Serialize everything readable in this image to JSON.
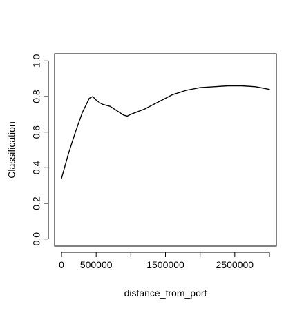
{
  "chart_data": {
    "type": "line",
    "title": "",
    "xlabel": "distance_from_port",
    "ylabel": "Classification",
    "xlim": [
      -100000,
      3100000
    ],
    "ylim": [
      -0.04,
      1.04
    ],
    "x_ticks": [
      0,
      500000,
      1000000,
      1500000,
      2000000,
      2500000,
      3000000
    ],
    "x_tick_labels": [
      "0",
      "500000",
      "",
      "1500000",
      "",
      "2500000",
      ""
    ],
    "y_ticks": [
      0.0,
      0.2,
      0.4,
      0.6,
      0.8,
      1.0
    ],
    "y_tick_labels": [
      "0.0",
      "0.2",
      "0.4",
      "0.6",
      "0.8",
      "1.0"
    ],
    "grid": false,
    "legend": "none",
    "colors": {
      "line": "#000000",
      "axis": "#000000",
      "background": "#ffffff"
    },
    "series": [
      {
        "x": [
          0,
          100000,
          200000,
          300000,
          400000,
          450000,
          500000,
          550000,
          600000,
          700000,
          800000,
          900000,
          950000,
          1000000,
          1200000,
          1400000,
          1600000,
          1800000,
          2000000,
          2200000,
          2400000,
          2600000,
          2800000,
          3000000
        ],
        "y": [
          0.34,
          0.48,
          0.6,
          0.71,
          0.79,
          0.8,
          0.78,
          0.765,
          0.755,
          0.745,
          0.72,
          0.695,
          0.69,
          0.7,
          0.73,
          0.77,
          0.81,
          0.835,
          0.85,
          0.855,
          0.86,
          0.86,
          0.855,
          0.84
        ]
      }
    ]
  }
}
